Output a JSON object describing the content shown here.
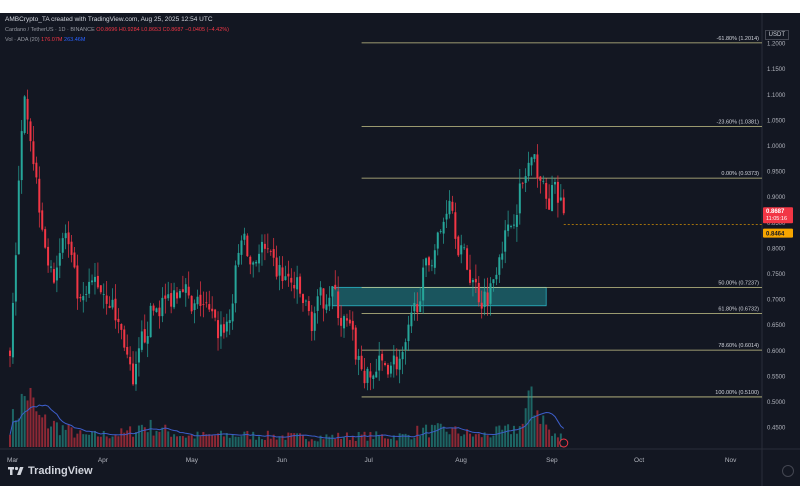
{
  "header": {
    "creator": "AMBCrypto_TA created with TradingView.com, Aug 25, 2025 12:54 UTC",
    "symbol_line": "Cardano / TetherUS · 1D · BINANCE",
    "ohlc": "O0.8696  H0.9284  L0.8653  C0.8687  −0.0405 (−4.42%)",
    "vol_label": "Vol · ADA (20)",
    "vol_value": "176.07M",
    "vol_ma": "263.46M",
    "currency": "USDT"
  },
  "brand": {
    "logo_text": "TradingView"
  },
  "colors": {
    "background": "#131722",
    "up": "#26a69a",
    "down": "#f23645",
    "fib_line": "#c8c68a",
    "zone": "#1e6b73",
    "price_tag_current": "#f23645",
    "price_tag_other": "#f7a600",
    "volume_ma": "#3d5eca"
  },
  "chart_data": {
    "type": "candlestick",
    "title": "Cardano / TetherUS · 1D · BINANCE",
    "x_axis": {
      "type": "time",
      "labels": [
        "Mar",
        "Apr",
        "May",
        "Jun",
        "Jul",
        "Aug",
        "Sep",
        "Oct",
        "Nov"
      ]
    },
    "y_axis": {
      "scale": "linear",
      "range": [
        0.42,
        1.25
      ],
      "ticks": [
        "1.2000",
        "1.1500",
        "1.1000",
        "1.0500",
        "1.0000",
        "0.9500",
        "0.9000",
        "0.8500",
        "0.8000",
        "0.7500",
        "0.7000",
        "0.6500",
        "0.6000",
        "0.5500",
        "0.5000",
        "0.4500"
      ]
    },
    "price_labels": [
      {
        "text": "0.8687",
        "sub": "11:05:16",
        "value": 0.8687,
        "kind": "current"
      },
      {
        "text": "0.8464",
        "value": 0.8464,
        "kind": "other"
      }
    ],
    "fibonacci": [
      {
        "label": "-61.80% (1.2014)",
        "price": 1.2014
      },
      {
        "label": "-23.60% (1.0381)",
        "price": 1.0381
      },
      {
        "label": "0.00% (0.9373)",
        "price": 0.9373
      },
      {
        "label": "50.00% (0.7237)",
        "price": 0.7237
      },
      {
        "label": "61.80% (0.6732)",
        "price": 0.6732
      },
      {
        "label": "78.60% (0.6014)",
        "price": 0.6014
      },
      {
        "label": "100.00% (0.5100)",
        "price": 0.51
      }
    ],
    "fib_start_day": 120,
    "zone": {
      "day_start": 110,
      "day_end": 183,
      "price_low": 0.688,
      "price_high": 0.724
    },
    "anchors": [
      [
        0,
        0.6
      ],
      [
        5,
        1.12
      ],
      [
        9,
        0.93
      ],
      [
        14,
        0.74
      ],
      [
        19,
        0.83
      ],
      [
        24,
        0.68
      ],
      [
        29,
        0.74
      ],
      [
        34,
        0.7
      ],
      [
        39,
        0.62
      ],
      [
        42,
        0.52
      ],
      [
        45,
        0.62
      ],
      [
        49,
        0.68
      ],
      [
        54,
        0.7
      ],
      [
        59,
        0.74
      ],
      [
        62,
        0.67
      ],
      [
        65,
        0.7
      ],
      [
        71,
        0.64
      ],
      [
        75,
        0.66
      ],
      [
        79,
        0.83
      ],
      [
        82,
        0.77
      ],
      [
        86,
        0.8
      ],
      [
        89,
        0.77
      ],
      [
        94,
        0.74
      ],
      [
        98,
        0.72
      ],
      [
        103,
        0.66
      ],
      [
        106,
        0.7
      ],
      [
        110,
        0.72
      ],
      [
        113,
        0.66
      ],
      [
        116,
        0.64
      ],
      [
        119,
        0.58
      ],
      [
        122,
        0.54
      ],
      [
        126,
        0.57
      ],
      [
        131,
        0.58
      ],
      [
        134,
        0.58
      ],
      [
        138,
        0.68
      ],
      [
        142,
        0.76
      ],
      [
        147,
        0.83
      ],
      [
        150,
        0.91
      ],
      [
        153,
        0.81
      ],
      [
        157,
        0.75
      ],
      [
        161,
        0.7
      ],
      [
        164,
        0.72
      ],
      [
        167,
        0.8
      ],
      [
        170,
        0.83
      ],
      [
        173,
        0.89
      ],
      [
        177,
        0.96
      ],
      [
        180,
        0.96
      ],
      [
        183,
        0.89
      ],
      [
        186,
        0.91
      ],
      [
        189,
        0.87
      ]
    ],
    "volume_profile": [
      [
        0,
        4
      ],
      [
        6,
        10
      ],
      [
        10,
        5
      ],
      [
        20,
        3
      ],
      [
        25,
        2
      ],
      [
        40,
        2.5
      ],
      [
        45,
        4
      ],
      [
        60,
        2
      ],
      [
        80,
        2.2
      ],
      [
        100,
        1.8
      ],
      [
        120,
        2
      ],
      [
        135,
        2
      ],
      [
        140,
        3
      ],
      [
        150,
        3
      ],
      [
        160,
        2
      ],
      [
        170,
        3
      ],
      [
        175,
        4
      ],
      [
        178,
        9
      ],
      [
        185,
        2
      ],
      [
        189,
        2
      ]
    ]
  }
}
